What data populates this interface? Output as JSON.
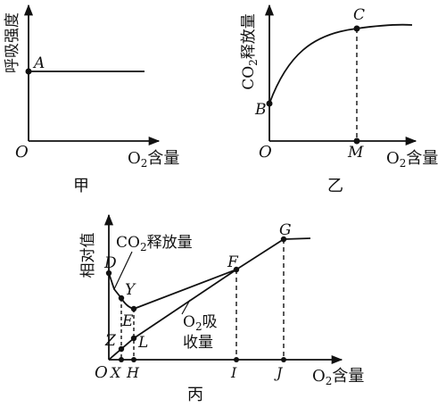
{
  "panel_jia": {
    "ylabel": "呼吸强度",
    "xlabel_o2": "O",
    "xlabel_sub": "2",
    "xlabel_rest": "含量",
    "origin": "O",
    "point_a": "A",
    "caption": "甲"
  },
  "panel_yi": {
    "ylabel_co": "CO",
    "ylabel_sub": "2",
    "ylabel_rest": "释放量",
    "xlabel_o2": "O",
    "xlabel_sub": "2",
    "xlabel_rest": "含量",
    "origin": "O",
    "point_b": "B",
    "point_c": "C",
    "point_m": "M",
    "caption": "乙"
  },
  "panel_bing": {
    "ylabel": "相对值",
    "co2_label_co": "CO",
    "co2_label_sub": "2",
    "co2_label_rest": "释放量",
    "o2_label_o": "O",
    "o2_label_sub": "2",
    "o2_label_rest1": "吸",
    "o2_label_rest2": "收量",
    "xlabel_o2": "O",
    "xlabel_sub": "2",
    "xlabel_rest": "含量",
    "origin": "O",
    "points": {
      "D": "D",
      "Y": "Y",
      "E": "E",
      "Z": "Z",
      "L": "L",
      "F": "F",
      "G": "G"
    },
    "ticks": {
      "X": "X",
      "H": "H",
      "I": "I",
      "J": "J"
    },
    "caption": "丙"
  }
}
